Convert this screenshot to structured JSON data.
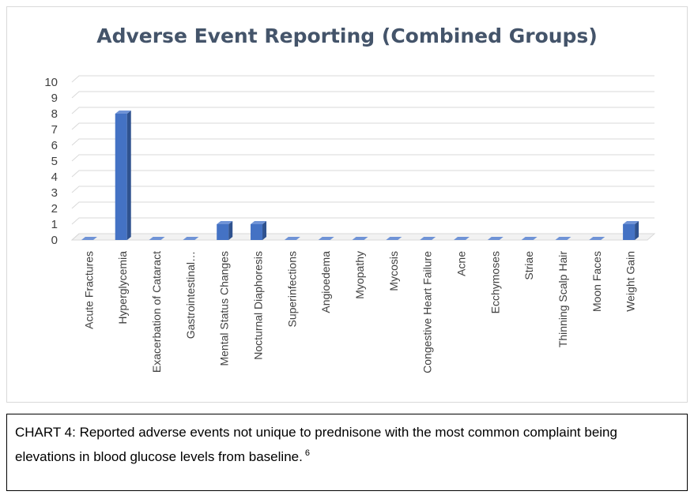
{
  "chart_data": {
    "type": "bar",
    "style": "3d-column",
    "title": "Adverse Event Reporting (Combined Groups)",
    "categories": [
      "Acute Fractures",
      "Hyperglycemia",
      "Exacerbation of Cataract",
      "Gastrointestinal…",
      "Mental Status Changes",
      "Nocturnal Diaphoresis",
      "Superinfections",
      "Angioedema",
      "Myopathy",
      "Mycosis",
      "Congestive Heart Failure",
      "Acne",
      "Ecchymoses",
      "Striae",
      "Thinning Scalp Hair",
      "Moon Faces",
      "Weight Gain"
    ],
    "values": [
      0,
      8,
      0,
      0,
      1,
      1,
      0,
      0,
      0,
      0,
      0,
      0,
      0,
      0,
      0,
      0,
      1
    ],
    "ylim": [
      0,
      10
    ],
    "yticks": [
      0,
      1,
      2,
      3,
      4,
      5,
      6,
      7,
      8,
      9,
      10
    ],
    "xlabel": "",
    "ylabel": "",
    "grid": true,
    "legend": "none",
    "colors": {
      "bar_front": "#4472c4",
      "bar_side": "#2f528f",
      "bar_top": "#6f93d6",
      "grid": "#d9d9d9",
      "axis_text": "#404040",
      "title": "#44546a"
    }
  },
  "caption": {
    "text": "CHART 4: Reported adverse events not unique to prednisone with the most common complaint being elevations in blood glucose levels from baseline.",
    "superscript": "6"
  }
}
